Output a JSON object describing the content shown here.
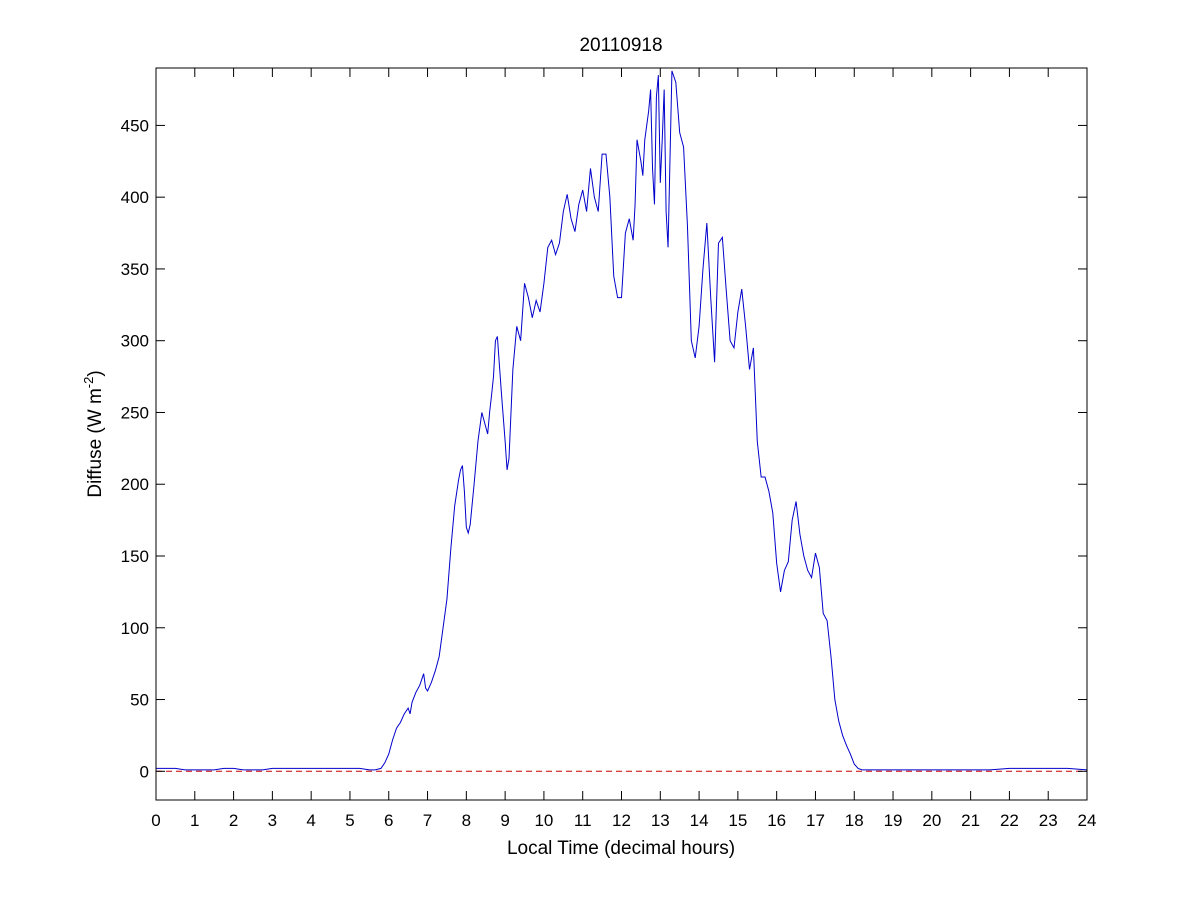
{
  "chart_data": {
    "type": "line",
    "title": "20110918",
    "xlabel": "Local Time (decimal hours)",
    "ylabel_main": "Diffuse (W m",
    "ylabel_sup": "-2",
    "ylabel_close": ")",
    "xlim": [
      0,
      24
    ],
    "ylim": [
      -20,
      490
    ],
    "xticks": [
      0,
      1,
      2,
      3,
      4,
      5,
      6,
      7,
      8,
      9,
      10,
      11,
      12,
      13,
      14,
      15,
      16,
      17,
      18,
      19,
      20,
      21,
      22,
      23,
      24
    ],
    "yticks": [
      0,
      50,
      100,
      150,
      200,
      250,
      300,
      350,
      400,
      450
    ],
    "grid": false,
    "legend": "none",
    "colors": {
      "series": "#0000cc",
      "reference": "#cc0000",
      "axes": "#000000"
    },
    "series": [
      {
        "style": "solid",
        "x": [
          0,
          0.25,
          0.5,
          0.75,
          1,
          1.25,
          1.5,
          1.75,
          2,
          2.25,
          2.5,
          2.75,
          3,
          3.25,
          3.5,
          3.75,
          4,
          4.25,
          4.5,
          4.75,
          5,
          5.25,
          5.5,
          5.65,
          5.8,
          5.9,
          6.0,
          6.1,
          6.2,
          6.3,
          6.4,
          6.5,
          6.55,
          6.6,
          6.7,
          6.8,
          6.85,
          6.9,
          6.95,
          7.0,
          7.1,
          7.2,
          7.3,
          7.4,
          7.5,
          7.6,
          7.7,
          7.8,
          7.85,
          7.9,
          7.95,
          8.0,
          8.05,
          8.1,
          8.2,
          8.3,
          8.4,
          8.5,
          8.55,
          8.6,
          8.65,
          8.7,
          8.75,
          8.8,
          8.9,
          9.0,
          9.05,
          9.1,
          9.2,
          9.3,
          9.4,
          9.5,
          9.6,
          9.7,
          9.8,
          9.9,
          10.0,
          10.1,
          10.2,
          10.3,
          10.4,
          10.5,
          10.6,
          10.7,
          10.8,
          10.9,
          11.0,
          11.1,
          11.2,
          11.3,
          11.4,
          11.5,
          11.6,
          11.7,
          11.8,
          11.9,
          12.0,
          12.1,
          12.2,
          12.3,
          12.35,
          12.4,
          12.5,
          12.55,
          12.6,
          12.7,
          12.75,
          12.8,
          12.85,
          12.9,
          12.95,
          13.0,
          13.05,
          13.1,
          13.15,
          13.2,
          13.3,
          13.4,
          13.5,
          13.6,
          13.7,
          13.8,
          13.9,
          14.0,
          14.1,
          14.2,
          14.3,
          14.4,
          14.5,
          14.6,
          14.7,
          14.8,
          14.9,
          15.0,
          15.1,
          15.2,
          15.3,
          15.4,
          15.5,
          15.6,
          15.7,
          15.8,
          15.9,
          16.0,
          16.1,
          16.2,
          16.3,
          16.4,
          16.5,
          16.6,
          16.7,
          16.8,
          16.9,
          17.0,
          17.1,
          17.2,
          17.3,
          17.4,
          17.5,
          17.6,
          17.7,
          17.8,
          17.9,
          18.0,
          18.1,
          18.2,
          18.3,
          18.5,
          18.75,
          19,
          19.5,
          20,
          20.5,
          21,
          21.5,
          22,
          22.5,
          23,
          23.5,
          24
        ],
        "y": [
          2,
          2,
          2,
          1,
          1,
          1,
          1,
          2,
          2,
          1,
          1,
          1,
          2,
          2,
          2,
          2,
          2,
          2,
          2,
          2,
          2,
          2,
          1,
          1,
          2,
          6,
          12,
          22,
          30,
          34,
          40,
          44,
          40,
          48,
          55,
          60,
          64,
          68,
          58,
          56,
          62,
          70,
          80,
          100,
          120,
          155,
          185,
          203,
          210,
          213,
          195,
          170,
          166,
          172,
          200,
          230,
          250,
          240,
          235,
          250,
          262,
          275,
          300,
          303,
          265,
          230,
          210,
          218,
          280,
          310,
          300,
          340,
          330,
          316,
          328,
          320,
          340,
          365,
          370,
          360,
          368,
          390,
          402,
          385,
          376,
          395,
          405,
          390,
          420,
          400,
          390,
          430,
          430,
          400,
          345,
          330,
          330,
          375,
          385,
          370,
          395,
          440,
          425,
          415,
          440,
          460,
          475,
          420,
          395,
          470,
          485,
          410,
          440,
          475,
          390,
          365,
          488,
          480,
          445,
          435,
          380,
          300,
          288,
          310,
          350,
          382,
          330,
          285,
          368,
          372,
          335,
          300,
          295,
          320,
          336,
          310,
          280,
          295,
          230,
          205,
          205,
          195,
          180,
          145,
          125,
          140,
          146,
          175,
          188,
          165,
          150,
          140,
          135,
          152,
          142,
          110,
          105,
          80,
          50,
          35,
          25,
          18,
          12,
          5,
          2,
          1,
          1,
          1,
          1,
          1,
          1,
          1,
          1,
          1,
          1,
          2,
          2,
          2,
          2,
          1
        ]
      },
      {
        "style": "dashed",
        "x": [
          0,
          24
        ],
        "y": [
          0,
          0
        ]
      }
    ]
  }
}
